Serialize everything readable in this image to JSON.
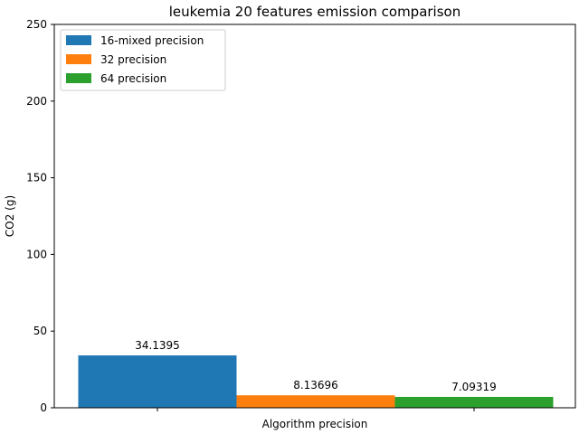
{
  "chart_data": {
    "type": "bar",
    "title": "leukemia 20 features emission comparison",
    "xlabel": "Algorithm precision",
    "ylabel": "CO2 (g)",
    "ylim": [
      0,
      250
    ],
    "yticks": [
      0,
      50,
      100,
      150,
      200,
      250
    ],
    "grid": false,
    "legend_position": "top-left",
    "series": [
      {
        "name": "16-mixed precision",
        "value": 34.1395,
        "label": "34.1395",
        "color": "#1f77b4"
      },
      {
        "name": "32 precision",
        "value": 8.13696,
        "label": "8.13696",
        "color": "#ff7f0e"
      },
      {
        "name": "64 precision",
        "value": 7.09319,
        "label": "7.09319",
        "color": "#2ca02c"
      }
    ]
  }
}
